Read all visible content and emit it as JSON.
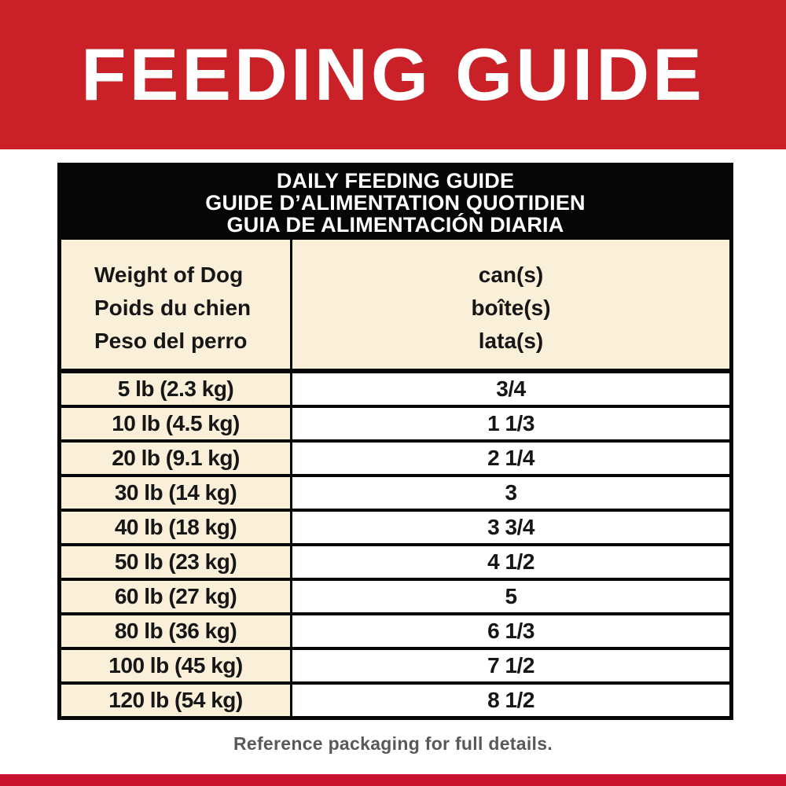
{
  "banner": {
    "title": "FEEDING GUIDE"
  },
  "table": {
    "title_lines": [
      "DAILY FEEDING GUIDE",
      "GUIDE D’ALIMENTATION QUOTIDIEN",
      "GUIA DE ALIMENTACIÓN DIARIA"
    ],
    "weight_header_lines": [
      "Weight of Dog",
      "Poids du chien",
      "Peso del perro"
    ],
    "cans_header_lines": [
      "can(s)",
      "boîte(s)",
      "lata(s)"
    ],
    "rows": [
      {
        "weight": "5 lb (2.3 kg)",
        "cans": "3/4"
      },
      {
        "weight": "10 lb (4.5 kg)",
        "cans": "1 1/3"
      },
      {
        "weight": "20 lb (9.1 kg)",
        "cans": "2 1/4"
      },
      {
        "weight": "30 lb (14 kg)",
        "cans": "3"
      },
      {
        "weight": "40 lb (18 kg)",
        "cans": "3 3/4"
      },
      {
        "weight": "50 lb (23 kg)",
        "cans": "4 1/2"
      },
      {
        "weight": "60 lb (27 kg)",
        "cans": "5"
      },
      {
        "weight": "80 lb (36 kg)",
        "cans": "6 1/3"
      },
      {
        "weight": "100 lb (45 kg)",
        "cans": "7 1/2"
      },
      {
        "weight": "120 lb (54 kg)",
        "cans": "8 1/2"
      }
    ]
  },
  "footer": {
    "note": "Reference packaging for full details."
  },
  "colors": {
    "banner_red": "#c92127",
    "strip_red": "#c8112c",
    "table_black": "#060606",
    "cream": "#faefd9",
    "row_white": "#ffffff",
    "text_dark": "#161616",
    "footer_gray": "#58595b",
    "banner_text": "#ffffff"
  }
}
